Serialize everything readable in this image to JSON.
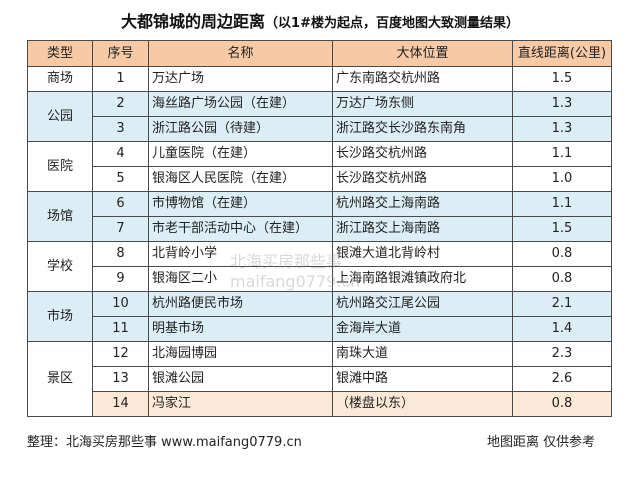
{
  "title": {
    "main": "大都锦城的周边距离",
    "sub": "（以1#楼为起点，百度地图大致测量结果）"
  },
  "table": {
    "headers": [
      "类型",
      "序号",
      "名称",
      "大体位置",
      "直线距离(公里)"
    ],
    "groups": [
      {
        "type": "商场",
        "rows": [
          {
            "num": "1",
            "name": "万达广场",
            "loc": "广东南路交杭州路",
            "dist": "1.5"
          }
        ]
      },
      {
        "type": "公园",
        "rows": [
          {
            "num": "2",
            "name": "海丝路广场公园（在建）",
            "loc": "万达广场东侧",
            "dist": "1.3"
          },
          {
            "num": "3",
            "name": "浙江路公园（待建）",
            "loc": "浙江路交长沙路东南角",
            "dist": "1.3"
          }
        ]
      },
      {
        "type": "医院",
        "rows": [
          {
            "num": "4",
            "name": "儿童医院（在建）",
            "loc": "长沙路交杭州路",
            "dist": "1.1"
          },
          {
            "num": "5",
            "name": "银海区人民医院（在建）",
            "loc": "长沙路交杭州路",
            "dist": "1.0"
          }
        ]
      },
      {
        "type": "场馆",
        "rows": [
          {
            "num": "6",
            "name": "市博物馆（在建）",
            "loc": "杭州路交上海南路",
            "dist": "1.1"
          },
          {
            "num": "7",
            "name": "市老干部活动中心（在建）",
            "loc": "浙江路交上海南路",
            "dist": "1.5"
          }
        ]
      },
      {
        "type": "学校",
        "rows": [
          {
            "num": "8",
            "name": "北背岭小学",
            "loc": "银滩大道北背岭村",
            "dist": "0.8"
          },
          {
            "num": "9",
            "name": "银海区二小",
            "loc": "上海南路银滩镇政府北",
            "dist": "0.8"
          }
        ]
      },
      {
        "type": "市场",
        "rows": [
          {
            "num": "10",
            "name": "杭州路便民市场",
            "loc": "杭州路交江尾公园",
            "dist": "2.1"
          },
          {
            "num": "11",
            "name": "明基市场",
            "loc": "金海岸大道",
            "dist": "1.4"
          }
        ]
      },
      {
        "type": "景区",
        "rows": [
          {
            "num": "12",
            "name": "北海园博园",
            "loc": "南珠大道",
            "dist": "2.3"
          },
          {
            "num": "13",
            "name": "银滩公园",
            "loc": "银滩中路",
            "dist": "2.6"
          },
          {
            "num": "14",
            "name": "冯家江",
            "loc": "（楼盘以东）",
            "dist": "0.8"
          }
        ]
      }
    ]
  },
  "watermark": {
    "line1": "北海买房那些事",
    "line2": "maifang0779.cn"
  },
  "footer": {
    "left": "整理：北海买房那些事 www.maifang0779.cn",
    "right": "地图距离 仅供参考"
  },
  "colors": {
    "header_bg": "#f7c9a5",
    "alt_row_bg": "#dceef5",
    "last_row_bg": "#fbe8d7"
  }
}
